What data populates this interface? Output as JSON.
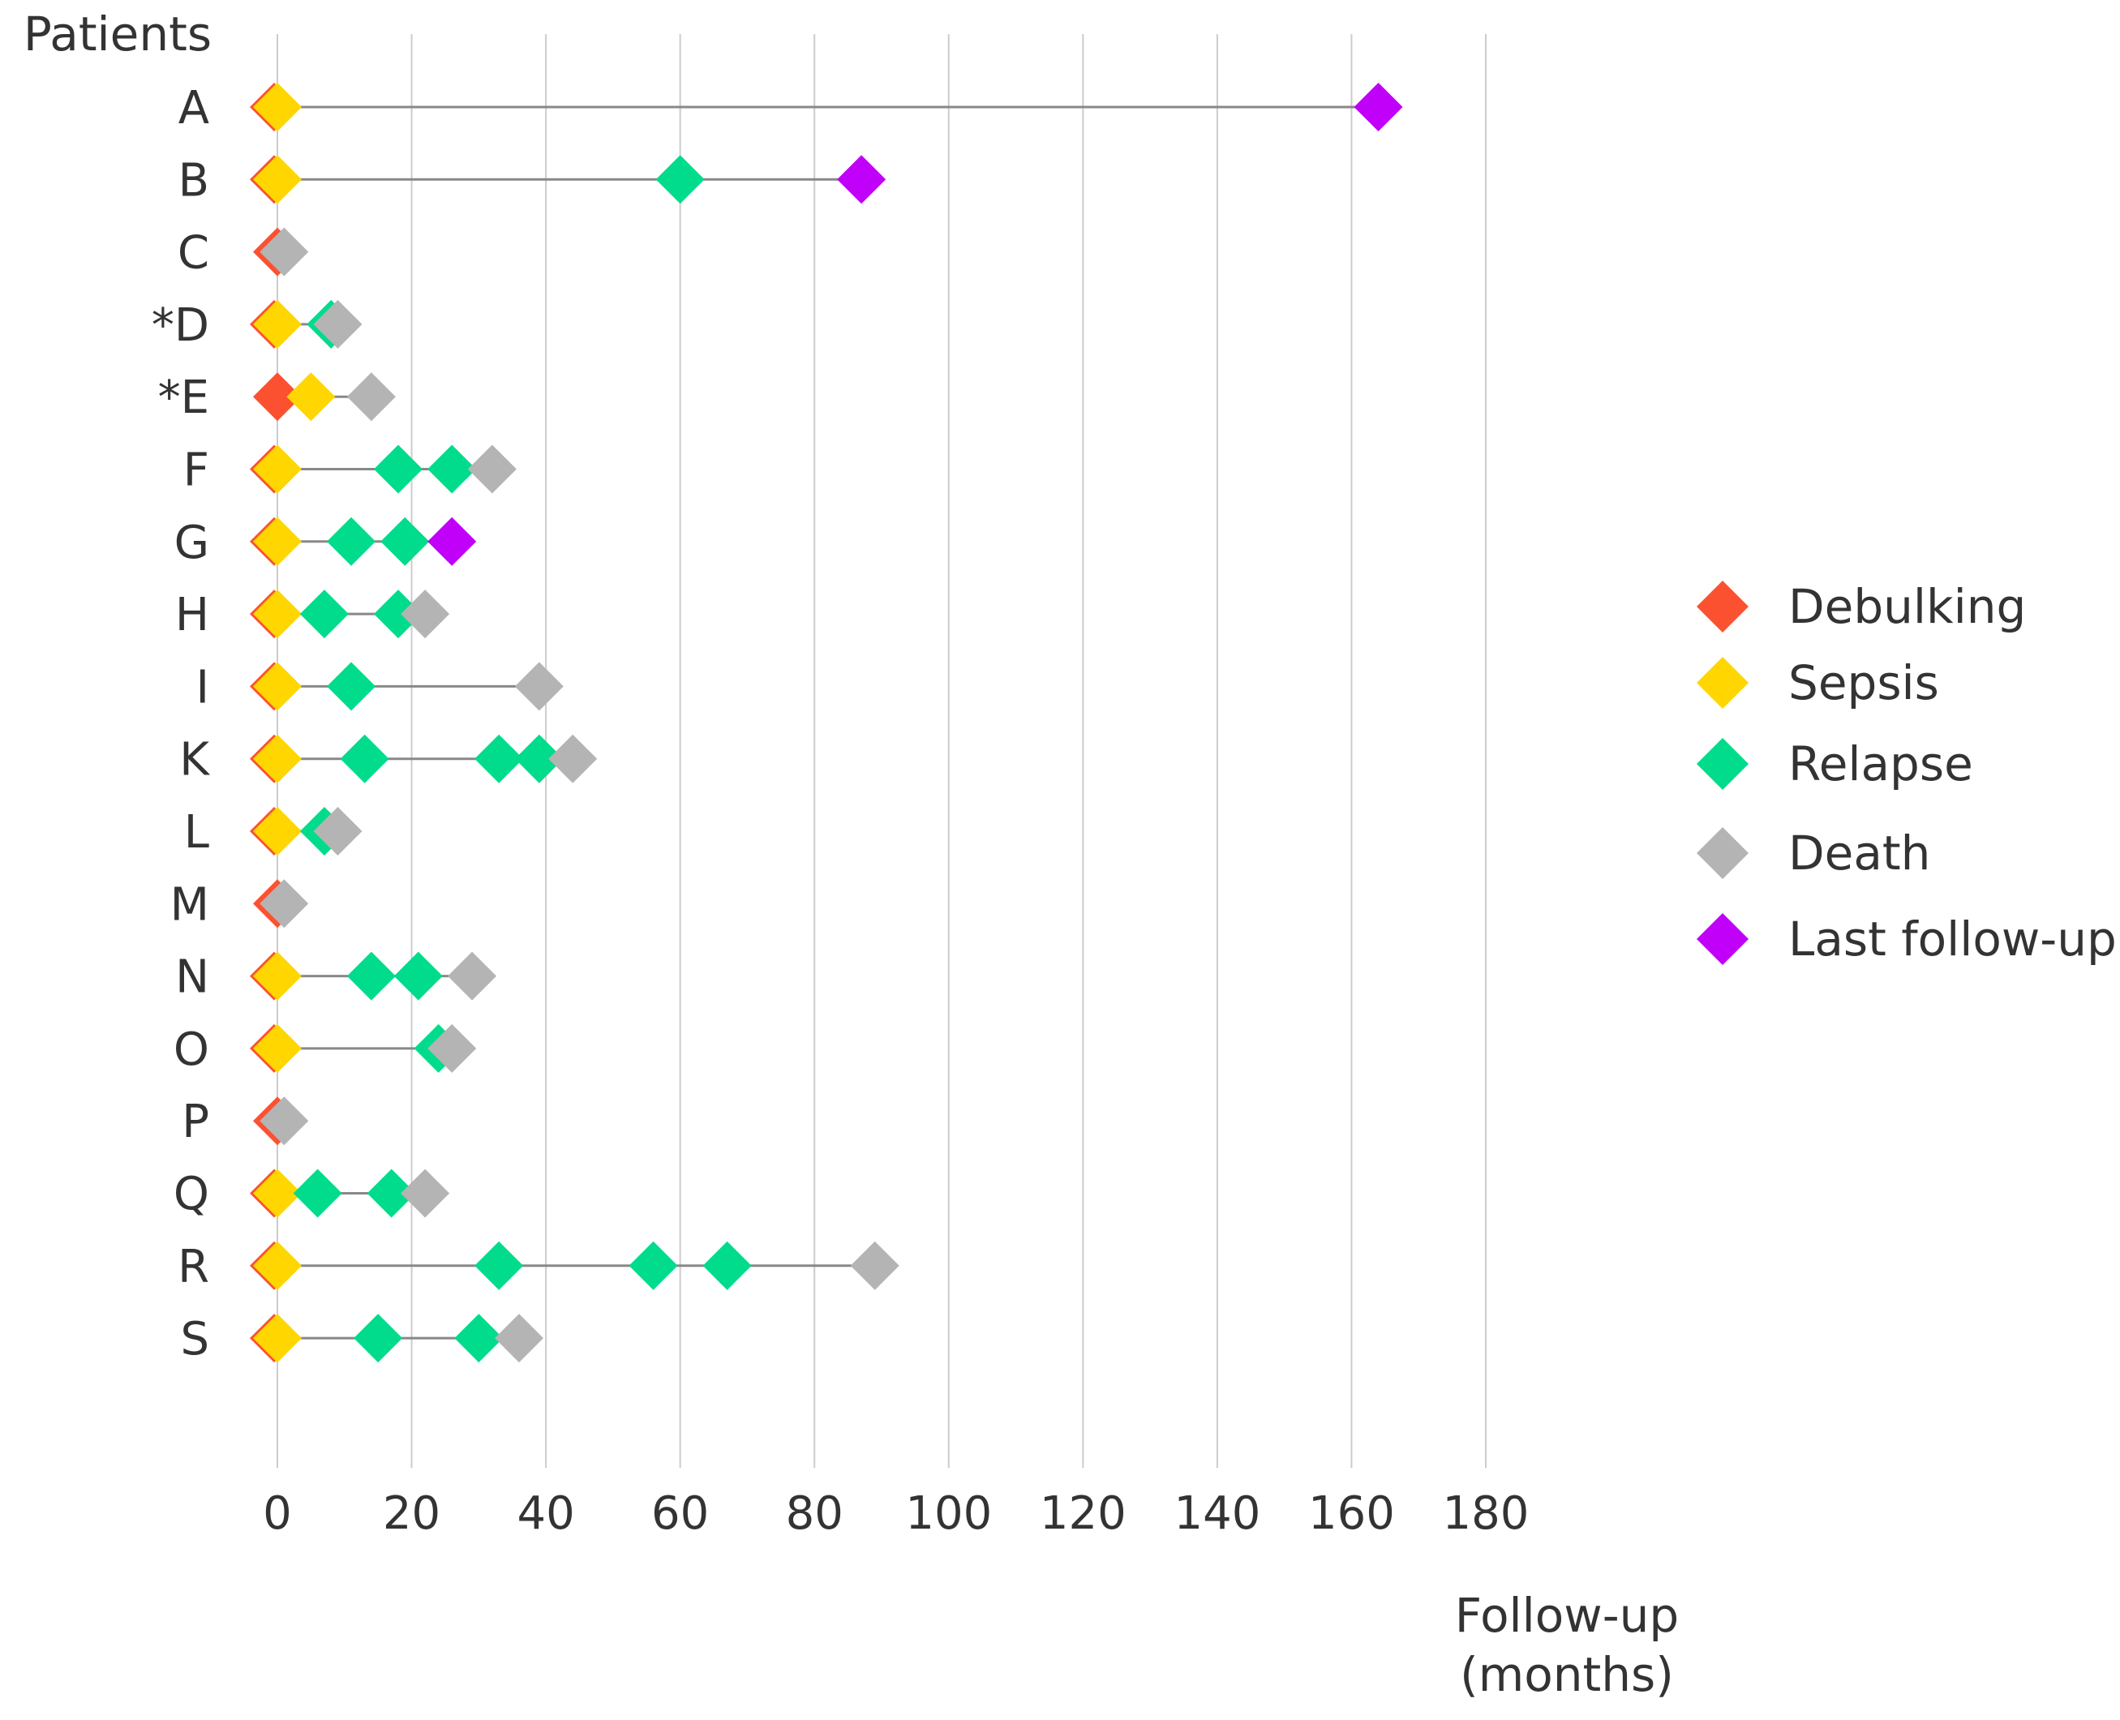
{
  "chart_data": {
    "type": "scatter",
    "subtype": "swimmer-timeline",
    "ylabel": "Patients",
    "xlabel_line1": "Follow-up",
    "xlabel_line2": "(months)",
    "xlim": [
      0,
      180
    ],
    "xticks": [
      0,
      20,
      40,
      60,
      80,
      100,
      120,
      140,
      160,
      180
    ],
    "grid": true,
    "legend_position": "right",
    "colors": {
      "Debulking": "#fc5130",
      "Sepsis": "#ffd600",
      "Relapse": "#00dc8c",
      "Death": "#b4b4b4",
      "Last follow-up": "#c000f8",
      "line": "#888888",
      "grid": "#cccccc"
    },
    "legend": [
      "Debulking",
      "Sepsis",
      "Relapse",
      "Death",
      "Last follow-up"
    ],
    "patients": [
      {
        "label": "A",
        "events": [
          {
            "type": "Debulking",
            "x": 0
          },
          {
            "type": "Sepsis",
            "x": 0
          },
          {
            "type": "Last follow-up",
            "x": 164
          }
        ]
      },
      {
        "label": "B",
        "events": [
          {
            "type": "Debulking",
            "x": 0
          },
          {
            "type": "Sepsis",
            "x": 0
          },
          {
            "type": "Relapse",
            "x": 60
          },
          {
            "type": "Last follow-up",
            "x": 87
          }
        ]
      },
      {
        "label": "C",
        "events": [
          {
            "type": "Debulking",
            "x": 0
          },
          {
            "type": "Death",
            "x": 1
          }
        ]
      },
      {
        "label": "*D",
        "events": [
          {
            "type": "Debulking",
            "x": 0
          },
          {
            "type": "Sepsis",
            "x": 0
          },
          {
            "type": "Relapse",
            "x": 8
          },
          {
            "type": "Death",
            "x": 9
          }
        ]
      },
      {
        "label": "*E",
        "events": [
          {
            "type": "Debulking",
            "x": 0
          },
          {
            "type": "Sepsis",
            "x": 5
          },
          {
            "type": "Death",
            "x": 14
          }
        ]
      },
      {
        "label": "F",
        "events": [
          {
            "type": "Debulking",
            "x": 0
          },
          {
            "type": "Sepsis",
            "x": 0
          },
          {
            "type": "Relapse",
            "x": 18
          },
          {
            "type": "Relapse",
            "x": 26
          },
          {
            "type": "Death",
            "x": 32
          }
        ]
      },
      {
        "label": "G",
        "events": [
          {
            "type": "Debulking",
            "x": 0
          },
          {
            "type": "Sepsis",
            "x": 0
          },
          {
            "type": "Relapse",
            "x": 11
          },
          {
            "type": "Relapse",
            "x": 19
          },
          {
            "type": "Last follow-up",
            "x": 26
          }
        ]
      },
      {
        "label": "H",
        "events": [
          {
            "type": "Debulking",
            "x": 0
          },
          {
            "type": "Sepsis",
            "x": 0
          },
          {
            "type": "Relapse",
            "x": 7
          },
          {
            "type": "Relapse",
            "x": 18
          },
          {
            "type": "Death",
            "x": 22
          }
        ]
      },
      {
        "label": "I",
        "events": [
          {
            "type": "Debulking",
            "x": 0
          },
          {
            "type": "Sepsis",
            "x": 0
          },
          {
            "type": "Relapse",
            "x": 11
          },
          {
            "type": "Death",
            "x": 39
          }
        ]
      },
      {
        "label": "K",
        "events": [
          {
            "type": "Debulking",
            "x": 0
          },
          {
            "type": "Sepsis",
            "x": 0
          },
          {
            "type": "Relapse",
            "x": 13
          },
          {
            "type": "Relapse",
            "x": 33
          },
          {
            "type": "Relapse",
            "x": 39
          },
          {
            "type": "Death",
            "x": 44
          }
        ]
      },
      {
        "label": "L",
        "events": [
          {
            "type": "Debulking",
            "x": 0
          },
          {
            "type": "Sepsis",
            "x": 0
          },
          {
            "type": "Relapse",
            "x": 7
          },
          {
            "type": "Death",
            "x": 9
          }
        ]
      },
      {
        "label": "M",
        "events": [
          {
            "type": "Debulking",
            "x": 0
          },
          {
            "type": "Death",
            "x": 1
          }
        ]
      },
      {
        "label": "N",
        "events": [
          {
            "type": "Debulking",
            "x": 0
          },
          {
            "type": "Sepsis",
            "x": 0
          },
          {
            "type": "Relapse",
            "x": 14
          },
          {
            "type": "Relapse",
            "x": 21
          },
          {
            "type": "Death",
            "x": 29
          }
        ]
      },
      {
        "label": "O",
        "events": [
          {
            "type": "Debulking",
            "x": 0
          },
          {
            "type": "Sepsis",
            "x": 0
          },
          {
            "type": "Relapse",
            "x": 24
          },
          {
            "type": "Death",
            "x": 26
          }
        ]
      },
      {
        "label": "P",
        "events": [
          {
            "type": "Debulking",
            "x": 0
          },
          {
            "type": "Death",
            "x": 1
          }
        ]
      },
      {
        "label": "Q",
        "events": [
          {
            "type": "Debulking",
            "x": 0
          },
          {
            "type": "Sepsis",
            "x": 0
          },
          {
            "type": "Relapse",
            "x": 6
          },
          {
            "type": "Relapse",
            "x": 17
          },
          {
            "type": "Death",
            "x": 22
          }
        ]
      },
      {
        "label": "R",
        "events": [
          {
            "type": "Debulking",
            "x": 0
          },
          {
            "type": "Sepsis",
            "x": 0
          },
          {
            "type": "Relapse",
            "x": 33
          },
          {
            "type": "Relapse",
            "x": 56
          },
          {
            "type": "Relapse",
            "x": 67
          },
          {
            "type": "Death",
            "x": 89
          }
        ]
      },
      {
        "label": "S",
        "events": [
          {
            "type": "Debulking",
            "x": 0
          },
          {
            "type": "Sepsis",
            "x": 0
          },
          {
            "type": "Relapse",
            "x": 15
          },
          {
            "type": "Relapse",
            "x": 30
          },
          {
            "type": "Death",
            "x": 36
          }
        ]
      }
    ]
  }
}
